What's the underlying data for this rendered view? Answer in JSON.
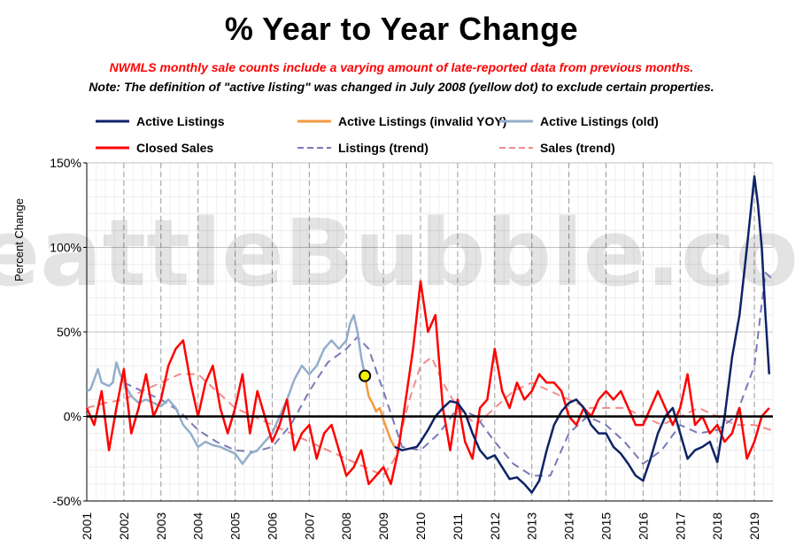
{
  "title": "% Year to Year Change",
  "note_red": "NWMLS monthly sale counts include a varying amount of late-reported  data from previous months.",
  "note_black": "Note: The definition of \"active listing\" was changed in July 2008 (yellow dot) to exclude certain properties.",
  "watermark": "SeattleBubble.com",
  "colors": {
    "active_listings": "#0d2366",
    "active_invalid": "#f59a3e",
    "active_old": "#93aecb",
    "closed_sales": "#ff0000",
    "listings_trend": "#7a79b8",
    "sales_trend": "#f38a8a",
    "yellow_dot": "#f4f400"
  },
  "chart_data": {
    "type": "line",
    "title": "% Year to Year Change",
    "ylabel": "Percent Change",
    "ylim": [
      -50,
      150
    ],
    "yticks": [
      "150%",
      "100%",
      "50%",
      "0%",
      "-50%"
    ],
    "xlim": [
      2001.0,
      2019.5
    ],
    "xticks": [
      "2001",
      "2002",
      "2003",
      "2004",
      "2005",
      "2006",
      "2007",
      "2008",
      "2009",
      "2010",
      "2011",
      "2012",
      "2013",
      "2014",
      "2015",
      "2016",
      "2017",
      "2018",
      "2019"
    ],
    "legend": [
      "Active Listings",
      "Active Listings (invalid YOY)",
      "Active Listings (old)",
      "Closed Sales",
      "Listings (trend)",
      "Sales (trend)"
    ],
    "highlight_point": {
      "x": 2008.5,
      "y": 24
    },
    "series": [
      {
        "name": "Active Listings (old)",
        "x": [
          2001.0,
          2001.1,
          2001.2,
          2001.3,
          2001.4,
          2001.5,
          2001.6,
          2001.7,
          2001.8,
          2001.9,
          2002.0,
          2002.2,
          2002.4,
          2002.6,
          2002.8,
          2003.0,
          2003.2,
          2003.4,
          2003.6,
          2003.8,
          2004.0,
          2004.2,
          2004.4,
          2004.6,
          2004.8,
          2005.0,
          2005.2,
          2005.4,
          2005.6,
          2005.8,
          2006.0,
          2006.2,
          2006.4,
          2006.6,
          2006.8,
          2007.0,
          2007.2,
          2007.4,
          2007.6,
          2007.8,
          2008.0,
          2008.1,
          2008.2,
          2008.3,
          2008.4,
          2008.5
        ],
        "y": [
          15,
          16,
          22,
          28,
          20,
          19,
          18,
          20,
          32,
          25,
          20,
          12,
          8,
          10,
          8,
          6,
          10,
          5,
          -5,
          -10,
          -18,
          -15,
          -17,
          -18,
          -20,
          -22,
          -28,
          -22,
          -20,
          -15,
          -10,
          0,
          10,
          22,
          30,
          25,
          30,
          40,
          45,
          40,
          45,
          55,
          60,
          50,
          35,
          24
        ]
      },
      {
        "name": "Active Listings (invalid YOY)",
        "x": [
          2008.5,
          2008.6,
          2008.7,
          2008.8,
          2008.9,
          2009.0,
          2009.1,
          2009.2,
          2009.3
        ],
        "y": [
          24,
          12,
          8,
          3,
          5,
          -2,
          -8,
          -14,
          -18
        ]
      },
      {
        "name": "Active Listings",
        "x": [
          2009.3,
          2009.5,
          2009.7,
          2009.9,
          2010.0,
          2010.2,
          2010.4,
          2010.6,
          2010.8,
          2011.0,
          2011.2,
          2011.4,
          2011.6,
          2011.8,
          2012.0,
          2012.2,
          2012.4,
          2012.6,
          2012.8,
          2013.0,
          2013.2,
          2013.4,
          2013.6,
          2013.8,
          2014.0,
          2014.2,
          2014.4,
          2014.6,
          2014.8,
          2015.0,
          2015.2,
          2015.4,
          2015.6,
          2015.8,
          2016.0,
          2016.2,
          2016.4,
          2016.6,
          2016.8,
          2017.0,
          2017.2,
          2017.4,
          2017.6,
          2017.8,
          2018.0,
          2018.2,
          2018.4,
          2018.6,
          2018.8,
          2019.0,
          2019.1,
          2019.2,
          2019.3,
          2019.4
        ],
        "y": [
          -18,
          -20,
          -19,
          -18,
          -15,
          -8,
          0,
          5,
          9,
          8,
          2,
          -10,
          -20,
          -25,
          -23,
          -30,
          -37,
          -36,
          -40,
          -45,
          -38,
          -20,
          -5,
          3,
          8,
          10,
          5,
          -5,
          -10,
          -10,
          -18,
          -22,
          -28,
          -35,
          -38,
          -25,
          -10,
          0,
          5,
          -10,
          -25,
          -20,
          -18,
          -15,
          -27,
          0,
          35,
          60,
          100,
          142,
          125,
          100,
          60,
          25
        ]
      },
      {
        "name": "Closed Sales",
        "x": [
          2001.0,
          2001.2,
          2001.4,
          2001.6,
          2001.8,
          2002.0,
          2002.2,
          2002.4,
          2002.6,
          2002.8,
          2003.0,
          2003.2,
          2003.4,
          2003.6,
          2003.8,
          2004.0,
          2004.2,
          2004.4,
          2004.6,
          2004.8,
          2005.0,
          2005.2,
          2005.4,
          2005.6,
          2005.8,
          2006.0,
          2006.2,
          2006.4,
          2006.6,
          2006.8,
          2007.0,
          2007.2,
          2007.4,
          2007.6,
          2007.8,
          2008.0,
          2008.2,
          2008.4,
          2008.6,
          2008.8,
          2009.0,
          2009.2,
          2009.4,
          2009.6,
          2009.8,
          2010.0,
          2010.2,
          2010.4,
          2010.6,
          2010.8,
          2011.0,
          2011.2,
          2011.4,
          2011.6,
          2011.8,
          2012.0,
          2012.2,
          2012.4,
          2012.6,
          2012.8,
          2013.0,
          2013.2,
          2013.4,
          2013.6,
          2013.8,
          2014.0,
          2014.2,
          2014.4,
          2014.6,
          2014.8,
          2015.0,
          2015.2,
          2015.4,
          2015.6,
          2015.8,
          2016.0,
          2016.2,
          2016.4,
          2016.6,
          2016.8,
          2017.0,
          2017.2,
          2017.4,
          2017.6,
          2017.8,
          2018.0,
          2018.2,
          2018.4,
          2018.6,
          2018.8,
          2019.0,
          2019.2,
          2019.4
        ],
        "y": [
          5,
          -5,
          15,
          -20,
          5,
          28,
          -10,
          5,
          25,
          0,
          10,
          30,
          40,
          45,
          20,
          0,
          20,
          30,
          5,
          -10,
          5,
          25,
          -10,
          15,
          0,
          -15,
          -5,
          10,
          -20,
          -10,
          -5,
          -25,
          -10,
          -5,
          -20,
          -35,
          -30,
          -20,
          -40,
          -35,
          -30,
          -40,
          -20,
          10,
          40,
          80,
          50,
          60,
          5,
          -20,
          10,
          -15,
          -25,
          5,
          10,
          40,
          15,
          5,
          20,
          10,
          15,
          25,
          20,
          20,
          15,
          0,
          -5,
          5,
          0,
          10,
          15,
          10,
          15,
          5,
          -5,
          -5,
          5,
          15,
          5,
          -5,
          5,
          25,
          -5,
          0,
          -10,
          -5,
          -15,
          -10,
          5,
          -25,
          -15,
          0,
          5
        ]
      },
      {
        "name": "Listings (trend)",
        "x": [
          2002.0,
          2002.5,
          2003.0,
          2003.5,
          2004.0,
          2004.5,
          2005.0,
          2005.5,
          2006.0,
          2006.5,
          2007.0,
          2007.5,
          2008.0,
          2008.3,
          2008.6,
          2009.0,
          2009.5,
          2010.0,
          2010.5,
          2011.0,
          2011.5,
          2012.0,
          2012.5,
          2013.0,
          2013.5,
          2014.0,
          2014.5,
          2015.0,
          2015.5,
          2016.0,
          2016.5,
          2017.0,
          2017.5,
          2018.0,
          2018.5,
          2019.0,
          2019.3,
          2019.45
        ],
        "y": [
          20,
          15,
          10,
          3,
          -8,
          -15,
          -20,
          -21,
          -18,
          -5,
          15,
          32,
          40,
          47,
          40,
          15,
          -18,
          -20,
          -10,
          5,
          0,
          -15,
          -28,
          -35,
          -35,
          -10,
          0,
          -5,
          -15,
          -28,
          -20,
          -5,
          -10,
          -8,
          0,
          30,
          85,
          82
        ]
      },
      {
        "name": "Sales (trend)",
        "x": [
          2001.0,
          2001.5,
          2002.0,
          2002.5,
          2003.0,
          2003.5,
          2004.0,
          2004.5,
          2005.0,
          2005.5,
          2006.0,
          2006.5,
          2007.0,
          2007.5,
          2008.0,
          2008.5,
          2009.0,
          2009.3,
          2009.7,
          2010.0,
          2010.3,
          2010.6,
          2011.0,
          2011.5,
          2012.0,
          2012.5,
          2013.0,
          2013.5,
          2014.0,
          2014.5,
          2015.0,
          2015.5,
          2016.0,
          2016.5,
          2017.0,
          2017.5,
          2018.0,
          2018.5,
          2019.0,
          2019.45
        ],
        "y": [
          5,
          8,
          10,
          15,
          20,
          25,
          25,
          15,
          5,
          0,
          -5,
          -10,
          -15,
          -20,
          -25,
          -30,
          -35,
          -25,
          10,
          30,
          35,
          20,
          5,
          -5,
          5,
          15,
          20,
          15,
          10,
          5,
          5,
          5,
          0,
          -5,
          0,
          5,
          0,
          -5,
          -5,
          -8
        ]
      }
    ]
  }
}
